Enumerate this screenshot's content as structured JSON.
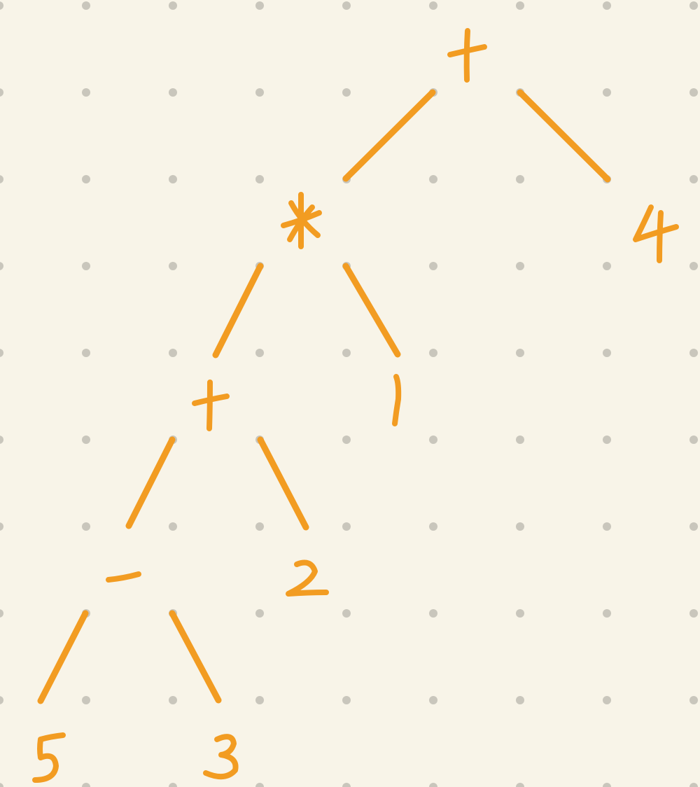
{
  "diagram": {
    "type": "expression-tree",
    "colors": {
      "background": "#f8f4e8",
      "dots": "#c9c6bc",
      "ink": "#f29c22"
    },
    "nodes": [
      {
        "id": "n1",
        "label": "+"
      },
      {
        "id": "n2",
        "label": "*"
      },
      {
        "id": "n3",
        "label": "4"
      },
      {
        "id": "n4",
        "label": "+"
      },
      {
        "id": "n5",
        "label": "1"
      },
      {
        "id": "n6",
        "label": "-"
      },
      {
        "id": "n7",
        "label": "2"
      },
      {
        "id": "n8",
        "label": "5"
      },
      {
        "id": "n9",
        "label": "3"
      }
    ],
    "edges": [
      {
        "from": "n1",
        "to": "n2"
      },
      {
        "from": "n1",
        "to": "n3"
      },
      {
        "from": "n2",
        "to": "n4"
      },
      {
        "from": "n2",
        "to": "n5"
      },
      {
        "from": "n4",
        "to": "n6"
      },
      {
        "from": "n4",
        "to": "n7"
      },
      {
        "from": "n6",
        "to": "n8"
      },
      {
        "from": "n6",
        "to": "n9"
      }
    ]
  }
}
